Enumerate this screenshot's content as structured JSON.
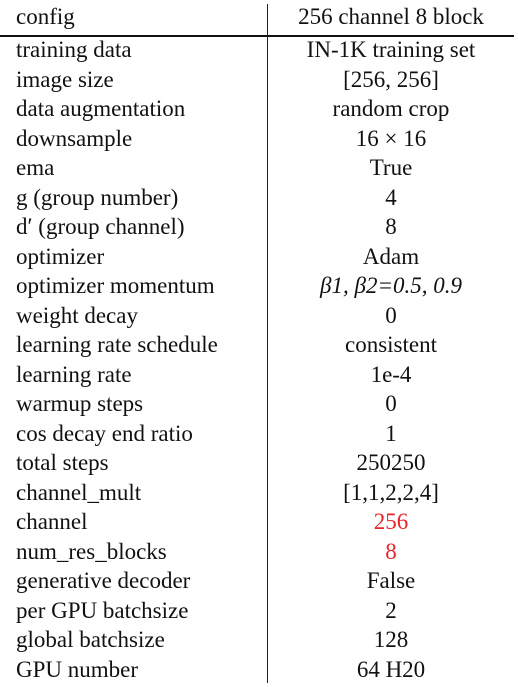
{
  "table": {
    "header": {
      "left": "config",
      "right": "256 channel 8 block"
    },
    "rows": [
      {
        "label": "training data",
        "value": "IN-1K training set"
      },
      {
        "label": "image size",
        "value": "[256, 256]"
      },
      {
        "label": "data augmentation",
        "value": "random crop"
      },
      {
        "label": "downsample",
        "value": "16 × 16"
      },
      {
        "label": "ema",
        "value": "True"
      },
      {
        "label": "g (group number)",
        "value": "4"
      },
      {
        "label": "d′ (group channel)",
        "value": "8"
      },
      {
        "label": "optimizer",
        "value": "Adam"
      },
      {
        "label": "optimizer momentum",
        "value": "β1, β2=0.5, 0.9"
      },
      {
        "label": "weight decay",
        "value": "0"
      },
      {
        "label": "learning rate schedule",
        "value": "consistent"
      },
      {
        "label": "learning rate",
        "value": "1e-4"
      },
      {
        "label": "warmup steps",
        "value": "0"
      },
      {
        "label": "cos decay end ratio",
        "value": "1"
      },
      {
        "label": "total steps",
        "value": "250250"
      },
      {
        "label": "channel_mult",
        "value": "[1,1,2,2,4]"
      },
      {
        "label": "channel",
        "value": "256"
      },
      {
        "label": "num_res_blocks",
        "value": "8"
      },
      {
        "label": "generative decoder",
        "value": "False"
      },
      {
        "label": "per GPU batchsize",
        "value": "2"
      },
      {
        "label": "global batchsize",
        "value": "128"
      },
      {
        "label": "GPU number",
        "value": "64 H20"
      }
    ],
    "highlight_color": "#e8232a"
  }
}
